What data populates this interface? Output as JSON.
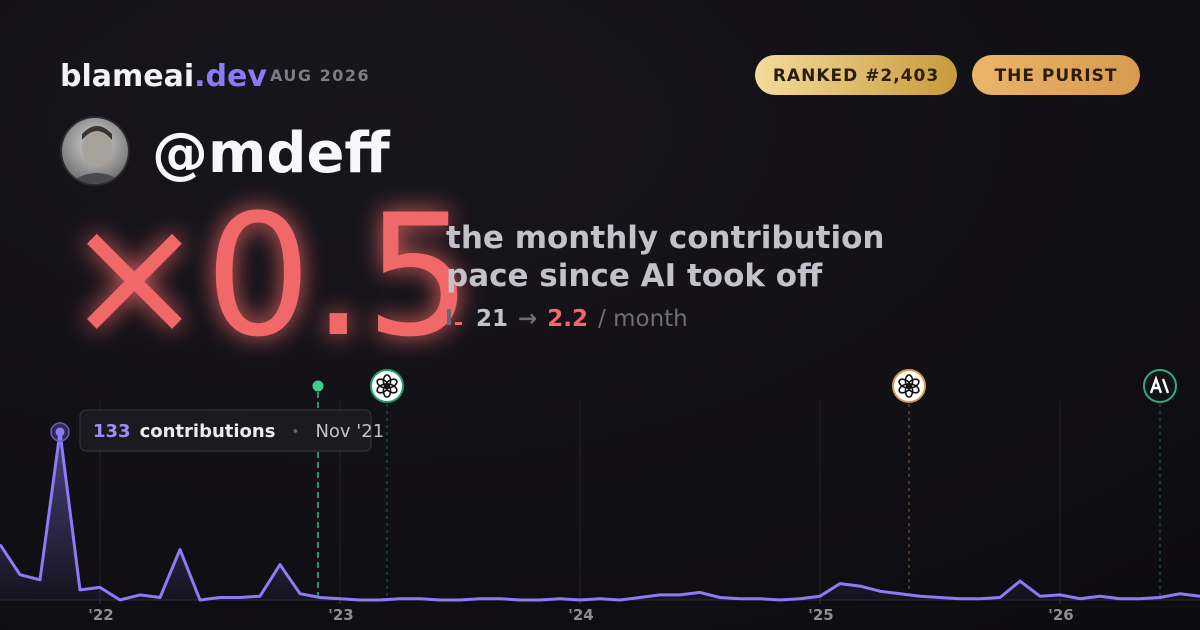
{
  "header": {
    "brand": "blameai",
    "brand_tld": ".dev",
    "date": "AUG 2026",
    "badges": [
      "RANKED #2,403",
      "THE PURIST"
    ]
  },
  "profile": {
    "handle": "@mdeff"
  },
  "headline": {
    "multiplier": "×0.5",
    "description_lines": [
      "the monthly contribution",
      "pace since AI took off"
    ],
    "before": 21,
    "arrow": "→",
    "after": 2.2,
    "unit": "/ month"
  },
  "chart_data": {
    "type": "area",
    "color": "#8b7cf6",
    "categories": [
      null,
      null,
      null,
      null,
      null,
      "'22",
      null,
      null,
      null,
      null,
      null,
      null,
      null,
      null,
      null,
      null,
      null,
      "'23",
      null,
      null,
      null,
      null,
      null,
      null,
      null,
      null,
      null,
      null,
      null,
      "'24",
      null,
      null,
      null,
      null,
      null,
      null,
      null,
      null,
      null,
      null,
      null,
      "'25",
      null,
      null,
      null,
      null,
      null,
      null,
      null,
      null,
      null,
      null,
      null,
      "'26",
      null,
      null,
      null,
      null,
      null,
      null,
      null
    ],
    "values": [
      44,
      20,
      16,
      133,
      8,
      10,
      0,
      4,
      2,
      40,
      0,
      2,
      2,
      3,
      28,
      5,
      2,
      1,
      0,
      0,
      1,
      1,
      0,
      0,
      1,
      1,
      0,
      0,
      1,
      0,
      1,
      0,
      2,
      4,
      4,
      6,
      2,
      1,
      1,
      0,
      1,
      3,
      13,
      11,
      7,
      5,
      3,
      2,
      1,
      1,
      2,
      15,
      3,
      4,
      1,
      3,
      1,
      1,
      2,
      5,
      3
    ],
    "tooltip": {
      "index": 3,
      "label": "contributions",
      "date": "Nov '21"
    },
    "events": [
      {
        "at": 15.9,
        "kind": "dot",
        "color": "#3ecf8e"
      },
      {
        "at": 19.35,
        "kind": "openai",
        "color": "#22a06b"
      },
      {
        "at": 45.45,
        "kind": "openai",
        "color": "#d99a4e"
      },
      {
        "at": 58,
        "kind": "anthropic",
        "color": "#2fae7a"
      }
    ]
  }
}
